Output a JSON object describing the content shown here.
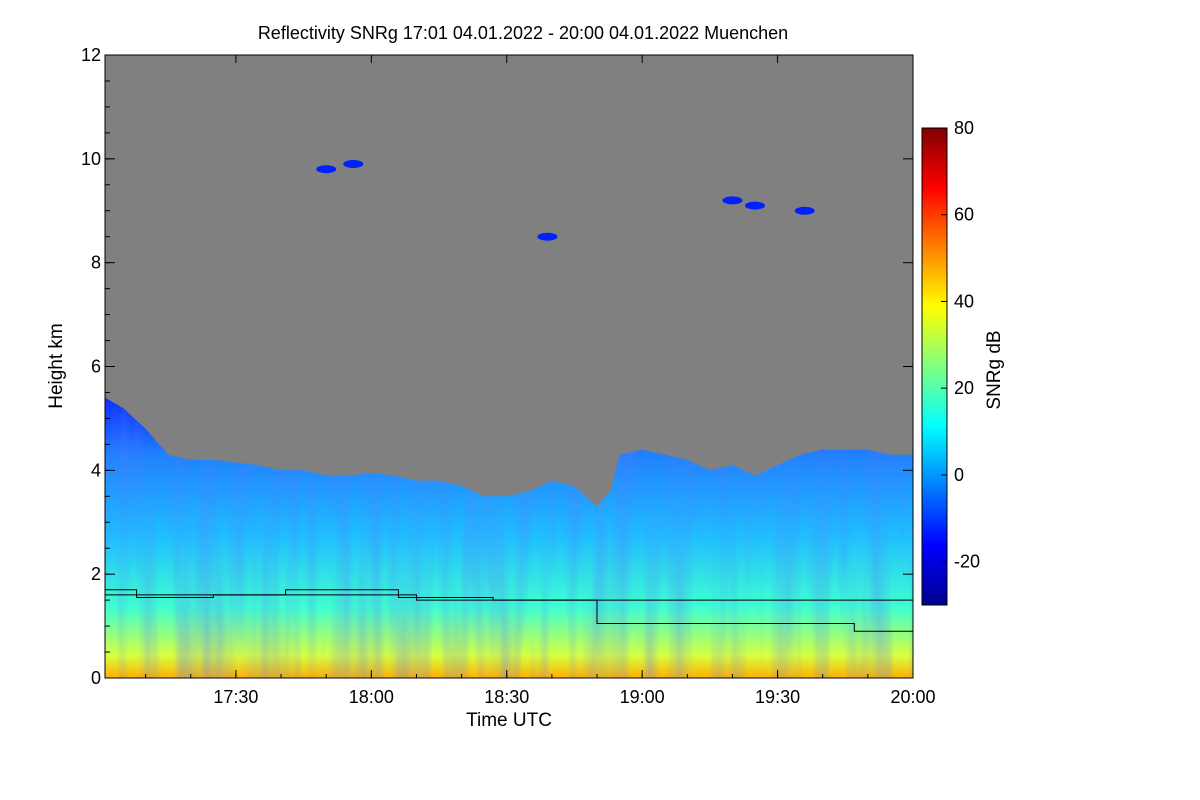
{
  "chart_data": {
    "type": "heatmap",
    "title": "Reflectivity SNRg   17:01 04.01.2022 - 20:00 04.01.2022 Muenchen",
    "xlabel": "Time UTC",
    "ylabel": "Height km",
    "xlim": [
      "17:01",
      "20:00"
    ],
    "ylim": [
      0,
      12
    ],
    "x_ticks": [
      {
        "label": "17:30",
        "minutes": 1050
      },
      {
        "label": "18:00",
        "minutes": 1080
      },
      {
        "label": "18:30",
        "minutes": 1110
      },
      {
        "label": "19:00",
        "minutes": 1140
      },
      {
        "label": "19:30",
        "minutes": 1170
      },
      {
        "label": "20:00",
        "minutes": 1200
      }
    ],
    "y_ticks": [
      0,
      2,
      4,
      6,
      8,
      10,
      12
    ],
    "colorbar": {
      "label": "SNRg dB",
      "range": [
        -30,
        80
      ],
      "ticks": [
        -20,
        0,
        20,
        40,
        60,
        80
      ],
      "colors": [
        "#00008f",
        "#0000ff",
        "#0080ff",
        "#00ffff",
        "#80ff80",
        "#ffff00",
        "#ff8000",
        "#ff0000",
        "#800000"
      ]
    },
    "background_color": "#808080",
    "echo_top_km": [
      [
        1021,
        5.4
      ],
      [
        1025,
        5.2
      ],
      [
        1030,
        4.8
      ],
      [
        1035,
        4.3
      ],
      [
        1040,
        4.2
      ],
      [
        1045,
        4.2
      ],
      [
        1050,
        4.15
      ],
      [
        1055,
        4.1
      ],
      [
        1060,
        4.0
      ],
      [
        1065,
        4.0
      ],
      [
        1070,
        3.9
      ],
      [
        1075,
        3.9
      ],
      [
        1080,
        3.95
      ],
      [
        1085,
        3.9
      ],
      [
        1090,
        3.8
      ],
      [
        1095,
        3.8
      ],
      [
        1100,
        3.7
      ],
      [
        1105,
        3.5
      ],
      [
        1110,
        3.5
      ],
      [
        1115,
        3.6
      ],
      [
        1120,
        3.8
      ],
      [
        1125,
        3.7
      ],
      [
        1130,
        3.3
      ],
      [
        1133,
        3.6
      ],
      [
        1135,
        4.3
      ],
      [
        1140,
        4.4
      ],
      [
        1145,
        4.3
      ],
      [
        1150,
        4.2
      ],
      [
        1155,
        4.0
      ],
      [
        1160,
        4.1
      ],
      [
        1165,
        3.9
      ],
      [
        1170,
        4.1
      ],
      [
        1175,
        4.3
      ],
      [
        1180,
        4.4
      ],
      [
        1185,
        4.4
      ],
      [
        1190,
        4.4
      ],
      [
        1195,
        4.3
      ],
      [
        1200,
        4.3
      ]
    ],
    "upper_cloud_patches_km": [
      {
        "time_minutes": 1076,
        "height": 9.9,
        "value_db": -20
      },
      {
        "time_minutes": 1070,
        "height": 9.8,
        "value_db": -20
      },
      {
        "time_minutes": 1160,
        "height": 9.2,
        "value_db": -20
      },
      {
        "time_minutes": 1165,
        "height": 9.1,
        "value_db": -20
      },
      {
        "time_minutes": 1176,
        "height": 9.0,
        "value_db": -20
      },
      {
        "time_minutes": 1119,
        "height": 8.5,
        "value_db": -20
      }
    ],
    "overlay_line_1_km": [
      [
        1021,
        1.7
      ],
      [
        1028,
        1.7
      ],
      [
        1028,
        1.55
      ],
      [
        1045,
        1.55
      ],
      [
        1045,
        1.6
      ],
      [
        1061,
        1.6
      ],
      [
        1061,
        1.7
      ],
      [
        1076,
        1.7
      ],
      [
        1086,
        1.7
      ],
      [
        1086,
        1.55
      ],
      [
        1107,
        1.55
      ],
      [
        1107,
        1.5
      ],
      [
        1200,
        1.5
      ]
    ],
    "overlay_line_2_km": [
      [
        1021,
        1.6
      ],
      [
        1090,
        1.6
      ],
      [
        1090,
        1.5
      ],
      [
        1130,
        1.5
      ],
      [
        1130,
        1.05
      ],
      [
        1158,
        1.05
      ],
      [
        1158,
        1.05
      ],
      [
        1187,
        1.05
      ],
      [
        1187,
        0.9
      ],
      [
        1200,
        0.9
      ]
    ]
  }
}
